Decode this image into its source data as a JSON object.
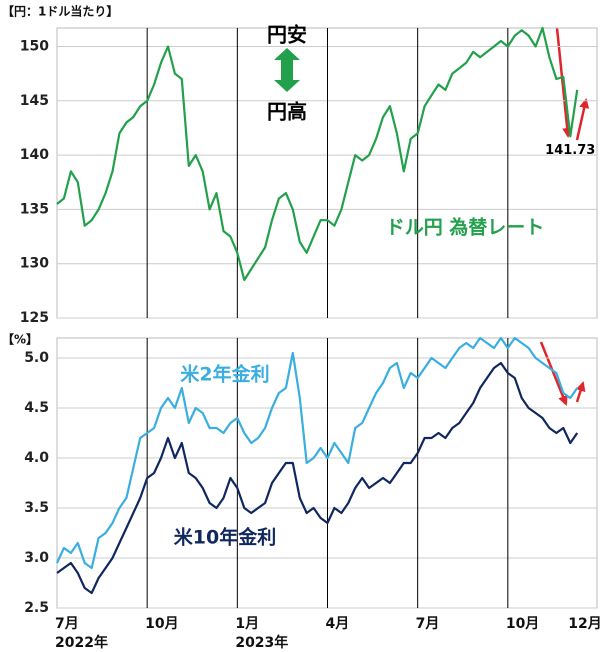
{
  "chart_data": [
    {
      "type": "line",
      "unit_label": "【円：1ドル当たり】",
      "annotations": [
        "円安",
        "円高"
      ],
      "x": [
        0,
        1,
        2,
        3,
        4,
        5,
        6,
        7,
        8,
        9,
        10,
        11,
        12,
        13,
        14,
        15,
        16,
        17,
        18,
        19,
        20,
        21,
        22,
        23,
        24,
        25,
        26,
        27,
        28,
        29,
        30,
        31,
        32,
        33,
        34,
        35,
        36,
        37,
        38,
        39,
        40,
        41,
        42,
        43,
        44,
        45,
        46,
        47,
        48,
        49,
        50,
        51,
        52,
        53,
        54,
        55,
        56,
        57,
        58,
        59,
        60,
        61,
        62,
        63,
        64,
        65,
        66,
        67,
        68,
        69,
        70,
        71,
        72,
        73,
        74,
        75
      ],
      "xlim": [
        0,
        78
      ],
      "xgrid": [
        13,
        26,
        39,
        52,
        65
      ],
      "ylim": [
        125,
        151.7
      ],
      "yticks": [
        125,
        130,
        135,
        140,
        145,
        150
      ],
      "grid": true,
      "series": [
        {
          "name": "ドル円 為替レート",
          "color": "#22a04b",
          "values": [
            135.5,
            136,
            138.5,
            137.5,
            133.5,
            134,
            135,
            136.5,
            138.5,
            142,
            143,
            143.5,
            144.5,
            145,
            146.5,
            148.5,
            150,
            147.5,
            147,
            139,
            140,
            138.5,
            135,
            136.5,
            133,
            132.5,
            131,
            128.5,
            129.5,
            130.5,
            131.5,
            134,
            136,
            136.5,
            135,
            132,
            131,
            132.5,
            134,
            134,
            133.5,
            135,
            137.5,
            140,
            139.5,
            140,
            141.5,
            143.5,
            144.5,
            142,
            138.5,
            141.5,
            142,
            144.5,
            145.5,
            146.5,
            146,
            147.5,
            148,
            148.5,
            149.5,
            149,
            149.5,
            150,
            150.5,
            150,
            151,
            151.5,
            151,
            150,
            151.7,
            149,
            147,
            147.2,
            141.73,
            146
          ],
          "value_labels": [
            null,
            null,
            null,
            null,
            null,
            null,
            null,
            null,
            null,
            null,
            null,
            null,
            null,
            null,
            null,
            null,
            null,
            null,
            null,
            null,
            null,
            null,
            null,
            null,
            null,
            null,
            null,
            null,
            null,
            null,
            null,
            null,
            null,
            null,
            null,
            null,
            null,
            null,
            null,
            null,
            null,
            null,
            null,
            null,
            null,
            null,
            null,
            null,
            null,
            null,
            null,
            null,
            null,
            null,
            null,
            null,
            null,
            null,
            null,
            null,
            null,
            null,
            null,
            null,
            null,
            null,
            null,
            null,
            null,
            null,
            null,
            null,
            null,
            null,
            "141.73",
            null
          ]
        }
      ]
    },
    {
      "type": "line",
      "unit_label": "【%】",
      "x": [
        0,
        1,
        2,
        3,
        4,
        5,
        6,
        7,
        8,
        9,
        10,
        11,
        12,
        13,
        14,
        15,
        16,
        17,
        18,
        19,
        20,
        21,
        22,
        23,
        24,
        25,
        26,
        27,
        28,
        29,
        30,
        31,
        32,
        33,
        34,
        35,
        36,
        37,
        38,
        39,
        40,
        41,
        42,
        43,
        44,
        45,
        46,
        47,
        48,
        49,
        50,
        51,
        52,
        53,
        54,
        55,
        56,
        57,
        58,
        59,
        60,
        61,
        62,
        63,
        64,
        65,
        66,
        67,
        68,
        69,
        70,
        71,
        72,
        73,
        74,
        75
      ],
      "xlim": [
        0,
        78
      ],
      "xgrid": [
        13,
        26,
        39,
        52,
        65
      ],
      "xticks": [
        {
          "value": 0,
          "label": "7月"
        },
        {
          "value": 13,
          "label": "10月"
        },
        {
          "value": 26,
          "label": "1月"
        },
        {
          "value": 39,
          "label": "4月"
        },
        {
          "value": 52,
          "label": "7月"
        },
        {
          "value": 65,
          "label": "10月"
        },
        {
          "value": 74,
          "label": "12月"
        }
      ],
      "year_labels": [
        {
          "value": 0,
          "label": "2022年"
        },
        {
          "value": 26,
          "label": "2023年"
        }
      ],
      "ylim": [
        2.5,
        5.2
      ],
      "yticks": [
        2.5,
        {
          "value": 3,
          "label": "3.0"
        },
        3.5,
        {
          "value": 4,
          "label": "4.0"
        },
        4.5,
        {
          "value": 5,
          "label": "5.0"
        }
      ],
      "grid": true,
      "series": [
        {
          "name": "米2年金利",
          "color": "#3aaee0",
          "values": [
            2.95,
            3.1,
            3.05,
            3.15,
            2.95,
            2.9,
            3.2,
            3.25,
            3.35,
            3.5,
            3.6,
            3.9,
            4.2,
            4.25,
            4.3,
            4.5,
            4.6,
            4.5,
            4.7,
            4.35,
            4.5,
            4.45,
            4.3,
            4.3,
            4.25,
            4.35,
            4.4,
            4.25,
            4.15,
            4.2,
            4.3,
            4.5,
            4.65,
            4.7,
            5.05,
            4.6,
            3.95,
            4.0,
            4.1,
            4.0,
            4.15,
            4.05,
            3.95,
            4.3,
            4.35,
            4.5,
            4.65,
            4.75,
            4.9,
            4.95,
            4.7,
            4.85,
            4.8,
            4.9,
            5.0,
            4.95,
            4.9,
            5.0,
            5.1,
            5.15,
            5.1,
            5.2,
            5.15,
            5.1,
            5.2,
            5.1,
            5.2,
            5.15,
            5.1,
            5.0,
            4.95,
            4.9,
            4.85,
            4.65,
            4.6,
            4.7
          ]
        },
        {
          "name": "米10年金利",
          "color": "#10285e",
          "values": [
            2.85,
            2.9,
            2.95,
            2.85,
            2.7,
            2.65,
            2.8,
            2.9,
            3.0,
            3.15,
            3.3,
            3.45,
            3.6,
            3.8,
            3.85,
            4.0,
            4.2,
            4.0,
            4.15,
            3.85,
            3.8,
            3.7,
            3.55,
            3.5,
            3.6,
            3.8,
            3.7,
            3.5,
            3.45,
            3.5,
            3.55,
            3.75,
            3.85,
            3.95,
            3.95,
            3.6,
            3.45,
            3.5,
            3.4,
            3.35,
            3.5,
            3.45,
            3.55,
            3.7,
            3.8,
            3.7,
            3.75,
            3.8,
            3.75,
            3.85,
            3.95,
            3.95,
            4.05,
            4.2,
            4.2,
            4.25,
            4.2,
            4.3,
            4.35,
            4.45,
            4.55,
            4.7,
            4.8,
            4.9,
            4.95,
            4.85,
            4.8,
            4.6,
            4.5,
            4.45,
            4.4,
            4.3,
            4.25,
            4.3,
            4.15,
            4.25
          ]
        }
      ]
    }
  ]
}
